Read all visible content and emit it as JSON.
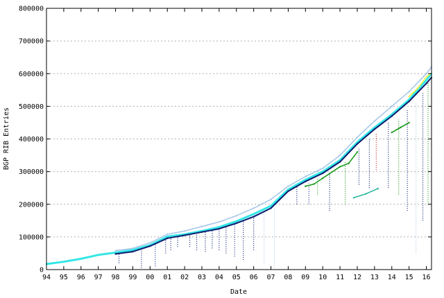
{
  "chart_data": {
    "type": "scatter",
    "title": "",
    "xlabel": "Date",
    "ylabel": "BGP RIB Entries",
    "xlim": [
      1994.0,
      2016.3
    ],
    "ylim": [
      0,
      800000
    ],
    "x_ticks": [
      {
        "value": 1994,
        "label": "94"
      },
      {
        "value": 1995,
        "label": "95"
      },
      {
        "value": 1996,
        "label": "96"
      },
      {
        "value": 1997,
        "label": "97"
      },
      {
        "value": 1998,
        "label": "98"
      },
      {
        "value": 1999,
        "label": "99"
      },
      {
        "value": 2000,
        "label": "00"
      },
      {
        "value": 2001,
        "label": "01"
      },
      {
        "value": 2002,
        "label": "02"
      },
      {
        "value": 2003,
        "label": "03"
      },
      {
        "value": 2004,
        "label": "04"
      },
      {
        "value": 2005,
        "label": "05"
      },
      {
        "value": 2006,
        "label": "06"
      },
      {
        "value": 2007,
        "label": "07"
      },
      {
        "value": 2008,
        "label": "08"
      },
      {
        "value": 2009,
        "label": "09"
      },
      {
        "value": 2010,
        "label": "10"
      },
      {
        "value": 2011,
        "label": "11"
      },
      {
        "value": 2012,
        "label": "12"
      },
      {
        "value": 2013,
        "label": "13"
      },
      {
        "value": 2014,
        "label": "14"
      },
      {
        "value": 2015,
        "label": "15"
      },
      {
        "value": 2016,
        "label": "16"
      }
    ],
    "y_ticks": [
      {
        "value": 0,
        "label": "0"
      },
      {
        "value": 100000,
        "label": "100000"
      },
      {
        "value": 200000,
        "label": "200000"
      },
      {
        "value": 300000,
        "label": "300000"
      },
      {
        "value": 400000,
        "label": "400000"
      },
      {
        "value": 500000,
        "label": "500000"
      },
      {
        "value": 600000,
        "label": "600000"
      },
      {
        "value": 700000,
        "label": "700000"
      },
      {
        "value": 800000,
        "label": "800000"
      }
    ],
    "grid": {
      "horizontal": true,
      "vertical": false,
      "style": "dashed"
    },
    "legend": "none",
    "colors": {
      "cyan": "#33e6e6",
      "light_blue": "#a8c8e8",
      "navy": "#0a1a6e",
      "dark_blue": "#1a2f9a",
      "green": "#1a9a1a",
      "yellow": "#f0f040",
      "red": "#cc2222",
      "teal": "#2ab8a0"
    },
    "series": [
      {
        "color_key": "cyan",
        "x": [
          1994.0,
          1995.0,
          1996.0,
          1997.0,
          1998.0,
          1999.0,
          2000.0,
          2000.5,
          2001.0,
          2002.0,
          2003.0,
          2004.0,
          2005.0,
          2006.0,
          2007.0,
          2008.0,
          2009.0,
          2010.0,
          2011.0,
          2012.0,
          2013.0,
          2014.0,
          2015.0,
          2016.0,
          2016.3
        ],
        "y": [
          17000,
          24000,
          33000,
          45000,
          52000,
          60000,
          75000,
          88000,
          101000,
          108000,
          118000,
          130000,
          148000,
          170000,
          195000,
          245000,
          275000,
          300000,
          335000,
          390000,
          435000,
          475000,
          520000,
          580000,
          600000
        ]
      },
      {
        "color_key": "light_blue",
        "x": [
          1998.0,
          1999.0,
          2000.0,
          2001.0,
          2002.0,
          2003.0,
          2004.0,
          2005.0,
          2006.0,
          2007.0,
          2008.0,
          2009.0,
          2010.0,
          2011.0,
          2012.0,
          2013.0,
          2014.0,
          2015.0,
          2016.0,
          2016.3
        ],
        "y": [
          58000,
          65000,
          82000,
          108000,
          118000,
          132000,
          146000,
          165000,
          188000,
          215000,
          255000,
          285000,
          310000,
          350000,
          405000,
          455000,
          500000,
          545000,
          600000,
          620000
        ]
      },
      {
        "color_key": "navy",
        "x": [
          1998.0,
          1999.0,
          2000.0,
          2001.0,
          2002.0,
          2003.0,
          2004.0,
          2005.0,
          2006.0,
          2007.0,
          2008.0,
          2009.0,
          2010.0,
          2011.0,
          2012.0,
          2013.0,
          2014.0,
          2015.0,
          2016.0,
          2016.3
        ],
        "y": [
          48000,
          55000,
          72000,
          96000,
          105000,
          115000,
          125000,
          142000,
          162000,
          188000,
          240000,
          270000,
          295000,
          330000,
          385000,
          430000,
          470000,
          515000,
          570000,
          588000
        ]
      },
      {
        "color_key": "green",
        "x": [
          2009.0,
          2009.5,
          2010.0,
          2011.0,
          2011.5,
          2012.0
        ],
        "y": [
          255000,
          262000,
          280000,
          315000,
          325000,
          360000
        ]
      },
      {
        "color_key": "green",
        "x": [
          2014.0,
          2014.5,
          2015.0
        ],
        "y": [
          420000,
          435000,
          450000
        ]
      },
      {
        "color_key": "teal",
        "x": [
          2011.8,
          2012.5,
          2013.2
        ],
        "y": [
          220000,
          232000,
          248000
        ]
      },
      {
        "color_key": "yellow",
        "x": [
          2015.0,
          2015.5,
          2016.0,
          2016.2
        ],
        "y": [
          530000,
          555000,
          590000,
          598000
        ]
      }
    ],
    "drops": [
      {
        "x": 1998.2,
        "y0": 20000,
        "y1": 48000,
        "color_key": "navy"
      },
      {
        "x": 1999.5,
        "y0": 5000,
        "y1": 60000,
        "color_key": "navy"
      },
      {
        "x": 2000.3,
        "y0": 10000,
        "y1": 80000,
        "color_key": "dark_blue"
      },
      {
        "x": 2000.9,
        "y0": 50000,
        "y1": 100000,
        "color_key": "navy"
      },
      {
        "x": 2001.2,
        "y0": 60000,
        "y1": 100000,
        "color_key": "navy"
      },
      {
        "x": 2001.6,
        "y0": 70000,
        "y1": 105000,
        "color_key": "navy"
      },
      {
        "x": 2002.3,
        "y0": 70000,
        "y1": 108000,
        "color_key": "navy"
      },
      {
        "x": 2002.7,
        "y0": 60000,
        "y1": 112000,
        "color_key": "navy"
      },
      {
        "x": 2003.2,
        "y0": 55000,
        "y1": 118000,
        "color_key": "navy"
      },
      {
        "x": 2003.6,
        "y0": 65000,
        "y1": 122000,
        "color_key": "navy"
      },
      {
        "x": 2004.0,
        "y0": 60000,
        "y1": 125000,
        "color_key": "navy"
      },
      {
        "x": 2004.4,
        "y0": 50000,
        "y1": 130000,
        "color_key": "navy"
      },
      {
        "x": 2004.9,
        "y0": 40000,
        "y1": 140000,
        "color_key": "dark_blue"
      },
      {
        "x": 2005.4,
        "y0": 30000,
        "y1": 150000,
        "color_key": "navy"
      },
      {
        "x": 2006.0,
        "y0": 60000,
        "y1": 160000,
        "color_key": "navy"
      },
      {
        "x": 2006.6,
        "y0": 20000,
        "y1": 175000,
        "color_key": "light_blue"
      },
      {
        "x": 2007.2,
        "y0": 5000,
        "y1": 190000,
        "color_key": "light_blue"
      },
      {
        "x": 2008.5,
        "y0": 200000,
        "y1": 255000,
        "color_key": "navy"
      },
      {
        "x": 2009.2,
        "y0": 200000,
        "y1": 265000,
        "color_key": "dark_blue"
      },
      {
        "x": 2009.7,
        "y0": 230000,
        "y1": 280000,
        "color_key": "green"
      },
      {
        "x": 2010.4,
        "y0": 180000,
        "y1": 300000,
        "color_key": "navy"
      },
      {
        "x": 2011.3,
        "y0": 200000,
        "y1": 330000,
        "color_key": "green"
      },
      {
        "x": 2012.1,
        "y0": 260000,
        "y1": 370000,
        "color_key": "navy"
      },
      {
        "x": 2012.7,
        "y0": 250000,
        "y1": 400000,
        "color_key": "navy"
      },
      {
        "x": 2013.1,
        "y0": 305000,
        "y1": 420000,
        "color_key": "red"
      },
      {
        "x": 2013.8,
        "y0": 250000,
        "y1": 450000,
        "color_key": "navy"
      },
      {
        "x": 2014.4,
        "y0": 230000,
        "y1": 460000,
        "color_key": "green"
      },
      {
        "x": 2014.9,
        "y0": 180000,
        "y1": 490000,
        "color_key": "navy"
      },
      {
        "x": 2015.4,
        "y0": 50000,
        "y1": 510000,
        "color_key": "light_blue"
      },
      {
        "x": 2015.8,
        "y0": 150000,
        "y1": 540000,
        "color_key": "navy"
      },
      {
        "x": 2016.1,
        "y0": 200000,
        "y1": 575000,
        "color_key": "green"
      }
    ]
  }
}
